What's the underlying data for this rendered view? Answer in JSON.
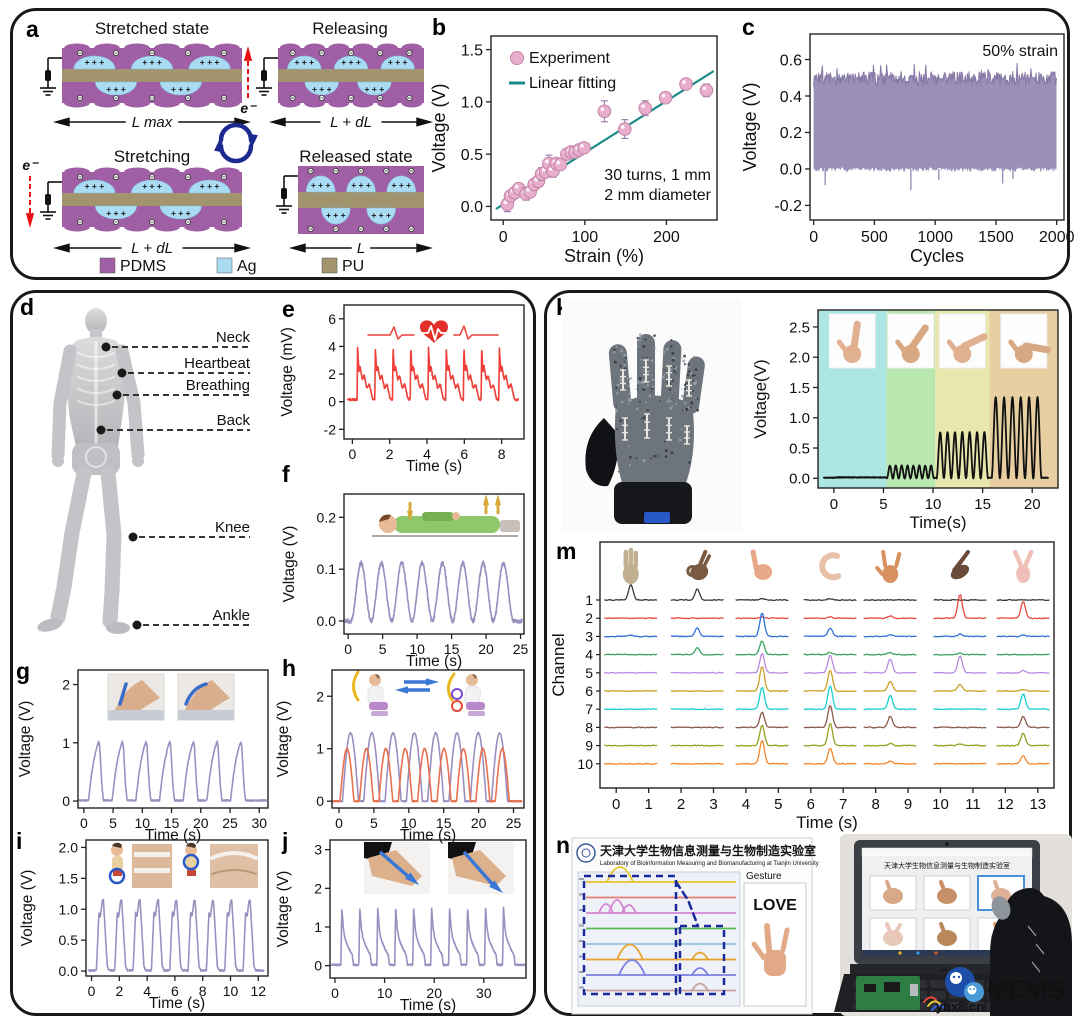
{
  "figure": {
    "type": "scientific-multipanel-figure",
    "background": "#ffffff",
    "border_color": "#1a1a1a"
  },
  "panels": {
    "a": {
      "label": "a",
      "states": [
        "Stretched state",
        "Releasing",
        "Stretching",
        "Released state"
      ],
      "length_labels": [
        "L max",
        "L + dL",
        "L + dL",
        "L"
      ],
      "electron_label": "e⁻",
      "plus_symbol": "+",
      "minus_symbol": "–",
      "legend": [
        {
          "name": "PDMS",
          "color": "#a05fa5"
        },
        {
          "name": "Ag",
          "color": "#a9dcf2"
        },
        {
          "name": "PU",
          "color": "#a2946e"
        }
      ],
      "cycle_arrow_color": "#1a2a8e"
    },
    "b": {
      "label": "b"
    },
    "c": {
      "label": "c"
    },
    "d": {
      "label": "d",
      "annotations": [
        "Neck",
        "Heartbeat",
        "Breathing",
        "Back",
        "Knee",
        "Ankle"
      ]
    },
    "e": {
      "label": "e"
    },
    "f": {
      "label": "f"
    },
    "g": {
      "label": "g"
    },
    "h": {
      "label": "h"
    },
    "i": {
      "label": "i"
    },
    "j": {
      "label": "j"
    },
    "k": {
      "label": "k"
    },
    "l": {
      "label": "l"
    },
    "m": {
      "label": "m"
    },
    "n": {
      "label": "n",
      "software": {
        "header_cn": "天津大学生物信息测量与生物制造实验室",
        "header_en": "Laboratory of Bioinformation Measuring and Biomanufacturing at Tianjin University",
        "gesture_label": "Gesture",
        "result_text": "LOVE",
        "trace_rows": [
          {
            "color": "#e8c428",
            "peak": "big"
          },
          {
            "color": "#e87d72",
            "peak": "none"
          },
          {
            "color": "#d584d5",
            "peak": "multi"
          },
          {
            "color": "#5cb85c",
            "peak": "none"
          },
          {
            "color": "#8fc4dd",
            "peak": "none"
          },
          {
            "color": "#e8a02e",
            "peak": "big",
            "peak2": true
          },
          {
            "color": "#7d7de0",
            "peak": "big",
            "peak2": true
          },
          {
            "color": "#c9a0a0",
            "peak": "none",
            "peak2": true
          }
        ]
      },
      "photo": {
        "brand": "DELL",
        "watermark_site": "ybx8.cn",
        "watermark_mems": "MEMS"
      }
    }
  },
  "chart_data": [
    {
      "id": "b",
      "type": "scatter",
      "xlabel": "Strain (%)",
      "ylabel": "Voltage (V)",
      "xlim": [
        -15,
        262
      ],
      "ylim": [
        -0.13,
        1.63
      ],
      "xticks": [
        0,
        100,
        200
      ],
      "xtick_labels": [
        "0",
        "100",
        "200"
      ],
      "yticks": [
        0,
        0.5,
        1,
        1.5
      ],
      "ytick_labels": [
        "0.0",
        "0.5",
        "1.0",
        "1.5"
      ],
      "legend": [
        {
          "label": "Experiment",
          "marker": "sphere",
          "color": "#e9aecb"
        },
        {
          "label": "Linear fitting",
          "marker": "line",
          "color": "#1f8a8a"
        }
      ],
      "annotation": [
        "30 turns, 1 mm",
        "2 mm diameter"
      ],
      "marker_edge": "#c184aa",
      "error_color": "#9b7fae",
      "points": [
        [
          5,
          0.02,
          0.07
        ],
        [
          9,
          0.1,
          0.05
        ],
        [
          14,
          0.13,
          0.04
        ],
        [
          19,
          0.17,
          0.05
        ],
        [
          28,
          0.12,
          0.06
        ],
        [
          33,
          0.14,
          0.05
        ],
        [
          38,
          0.21,
          0.05
        ],
        [
          43,
          0.24,
          0.05
        ],
        [
          47,
          0.31,
          0.06
        ],
        [
          52,
          0.33,
          0.05
        ],
        [
          56,
          0.41,
          0.08
        ],
        [
          61,
          0.34,
          0.06
        ],
        [
          65,
          0.41,
          0.05
        ],
        [
          70,
          0.4,
          0.04
        ],
        [
          78,
          0.5,
          0.04
        ],
        [
          83,
          0.52,
          0.04
        ],
        [
          88,
          0.52,
          0.04
        ],
        [
          93,
          0.54,
          0.04
        ],
        [
          99,
          0.56,
          0.04
        ],
        [
          124,
          0.91,
          0.1
        ],
        [
          149,
          0.74,
          0.09
        ],
        [
          174,
          0.94,
          0.07
        ],
        [
          199,
          1.04,
          0.05
        ],
        [
          224,
          1.17,
          0.05
        ],
        [
          249,
          1.11,
          0.06
        ]
      ],
      "fit_line": [
        [
          -8,
          -0.02
        ],
        [
          257,
          1.29
        ]
      ]
    },
    {
      "id": "c",
      "type": "noise-band",
      "xlabel": "Cycles",
      "ylabel": "Voltage (V)",
      "xlim": [
        -30,
        2060
      ],
      "ylim": [
        -0.28,
        0.74
      ],
      "xticks": [
        0,
        500,
        1000,
        1500,
        2000
      ],
      "xtick_labels": [
        "0",
        "500",
        "1000",
        "1500",
        "2000"
      ],
      "yticks": [
        -0.2,
        0,
        0.2,
        0.4,
        0.6
      ],
      "ytick_labels": [
        "-0.2",
        "0.0",
        "0.2",
        "0.4",
        "0.6"
      ],
      "annotation": "50% strain",
      "annotation_color": "#fe0000",
      "color": "#9b8fb9",
      "band": {
        "top": 0.495,
        "top_jitter": 0.04,
        "bottom": -0.004,
        "bottom_jitter": 0.013,
        "neg_spikes": [
          [
            95,
            -0.09
          ],
          [
            800,
            -0.115
          ],
          [
            1030,
            -0.06
          ],
          [
            1555,
            -0.08
          ],
          [
            1640,
            -0.055
          ]
        ]
      }
    },
    {
      "id": "e",
      "type": "line",
      "xlabel": "Time (s)",
      "ylabel": "Voltage (mV)",
      "xlim": [
        -0.45,
        9.2
      ],
      "ylim": [
        -2.7,
        7
      ],
      "xticks": [
        0,
        2,
        4,
        6,
        8
      ],
      "xtick_labels": [
        "0",
        "2",
        "4",
        "6",
        "8"
      ],
      "yticks": [
        -2,
        0,
        2,
        4,
        6
      ],
      "ytick_labels": [
        "-2",
        "0",
        "2",
        "4",
        "6"
      ],
      "color": "#ef3f38",
      "icon": "heartbeat-icon",
      "signal": {
        "kind": "pulses",
        "n": 9,
        "start": 0.25,
        "period": 0.95,
        "base": 0.15,
        "noise": 0.07,
        "shape": [
          [
            0,
            0.2
          ],
          [
            0.03,
            3.9
          ],
          [
            0.1,
            2.2
          ],
          [
            0.16,
            2.6
          ],
          [
            0.28,
            1.6
          ],
          [
            0.38,
            1.9
          ],
          [
            0.52,
            1.0
          ],
          [
            0.66,
            1.25
          ],
          [
            0.82,
            0.25
          ],
          [
            0.9,
            0.15
          ]
        ]
      }
    },
    {
      "id": "f",
      "type": "line",
      "xlabel": "Time (s)",
      "ylabel": "Voltage (V)",
      "xlim": [
        -0.6,
        25.5
      ],
      "ylim": [
        -0.025,
        0.245
      ],
      "xticks": [
        0,
        5,
        10,
        15,
        20,
        25
      ],
      "xtick_labels": [
        "0",
        "5",
        "10",
        "15",
        "20",
        "25"
      ],
      "yticks": [
        0,
        0.1,
        0.2
      ],
      "ytick_labels": [
        "0.0",
        "0.1",
        "0.2"
      ],
      "color": "#9b8fc0",
      "icon": "lying-person-illustration",
      "signal": {
        "kind": "sine",
        "start": 0.4,
        "period": 2.95,
        "n": 8,
        "base": 0,
        "amp": 0.112,
        "noise": 0.004
      }
    },
    {
      "id": "g",
      "type": "line",
      "xlabel": "Time (s)",
      "ylabel": "Voltage (V)",
      "xlim": [
        -1,
        31.5
      ],
      "ylim": [
        -0.12,
        2.25
      ],
      "xticks": [
        0,
        5,
        10,
        15,
        20,
        25,
        30
      ],
      "xtick_labels": [
        "0",
        "5",
        "10",
        "15",
        "20",
        "25",
        "30"
      ],
      "yticks": [
        0,
        1,
        2
      ],
      "ytick_labels": [
        "0",
        "1",
        "2"
      ],
      "color": "#9b8fc0",
      "icon": "neck-bending-photos",
      "signal": {
        "kind": "pulses",
        "n": 7,
        "start": 0.8,
        "period": 4.05,
        "base": 0.01,
        "noise": 0.012,
        "shape": [
          [
            0,
            0.02
          ],
          [
            0.5,
            0.45
          ],
          [
            0.9,
            0.7
          ],
          [
            1.4,
            0.92
          ],
          [
            1.75,
            1.02
          ],
          [
            1.9,
            0.95
          ],
          [
            2.3,
            0.25
          ],
          [
            2.55,
            0.02
          ]
        ]
      }
    },
    {
      "id": "h",
      "type": "line",
      "xlabel": "Time (s)",
      "ylabel": "Voltage (V)",
      "xlim": [
        -1,
        26.5
      ],
      "ylim": [
        -0.13,
        2.5
      ],
      "xticks": [
        0,
        5,
        10,
        15,
        20,
        25
      ],
      "xtick_labels": [
        "0",
        "5",
        "10",
        "15",
        "20",
        "25"
      ],
      "yticks": [
        0,
        1,
        2
      ],
      "ytick_labels": [
        "0",
        "1",
        "2"
      ],
      "icon": "sitting-posture-illustration",
      "series": [
        {
          "name": "upright-posture",
          "color": "#9b8fc0",
          "kind": "half_sine",
          "start": 0.5,
          "period": 3.05,
          "width": 2.3,
          "n": 8,
          "amp": 1.3,
          "noise": 0.01
        },
        {
          "name": "hunched-posture",
          "color": "#e8714f",
          "kind": "half_sine",
          "start": 0.15,
          "period": 2.78,
          "width": 2.0,
          "n": 9,
          "amp": 1.0,
          "noise": 0.01
        }
      ]
    },
    {
      "id": "i",
      "type": "line",
      "xlabel": "Time (s)",
      "ylabel": "Voltage (V)",
      "xlim": [
        -0.4,
        12.7
      ],
      "ylim": [
        -0.08,
        2.12
      ],
      "xticks": [
        0,
        2,
        4,
        6,
        8,
        10,
        12
      ],
      "xtick_labels": [
        "0",
        "2",
        "4",
        "6",
        "8",
        "10",
        "12"
      ],
      "yticks": [
        0,
        0.5,
        1,
        1.5,
        2
      ],
      "ytick_labels": [
        "0.0",
        "0.5",
        "1.0",
        "1.5",
        "2.0"
      ],
      "color": "#9b8fc0",
      "icon": "knee-elbow-photos",
      "signal": {
        "kind": "pulses",
        "n": 9,
        "start": 0.35,
        "period": 1.32,
        "base": 0.01,
        "noise": 0.012,
        "shape": [
          [
            0,
            0.02
          ],
          [
            0.18,
            0.95
          ],
          [
            0.28,
            0.88
          ],
          [
            0.42,
            1.13
          ],
          [
            0.5,
            1.15
          ],
          [
            0.62,
            0.7
          ],
          [
            0.78,
            0.08
          ],
          [
            0.9,
            0.02
          ]
        ]
      }
    },
    {
      "id": "j",
      "type": "line",
      "xlabel": "Time (s)",
      "ylabel": "Voltage (V)",
      "xlim": [
        -1,
        38.5
      ],
      "ylim": [
        -0.32,
        3.25
      ],
      "xticks": [
        0,
        10,
        20,
        30
      ],
      "xtick_labels": [
        "0",
        "10",
        "20",
        "30"
      ],
      "yticks": [
        0,
        1,
        2,
        3
      ],
      "ytick_labels": [
        "0",
        "1",
        "2",
        "3"
      ],
      "color": "#9b8fc0",
      "icon": "ankle-flexion-photos",
      "signal": {
        "kind": "pulses",
        "n": 10,
        "start": 1.2,
        "period": 3.62,
        "base": 0.02,
        "noise": 0.02,
        "shape": [
          [
            0,
            0.05
          ],
          [
            0.18,
            1.5
          ],
          [
            0.5,
            0.95
          ],
          [
            0.8,
            0.72
          ],
          [
            1.1,
            0.6
          ],
          [
            1.7,
            0.42
          ],
          [
            2.3,
            0.28
          ],
          [
            2.5,
            0.05
          ]
        ]
      }
    },
    {
      "id": "l",
      "type": "line",
      "xlabel": "Time(s)",
      "ylabel": "Voltage(V)",
      "xlim": [
        -1.6,
        22.6
      ],
      "ylim": [
        -0.16,
        2.78
      ],
      "xticks": [
        0,
        5,
        10,
        15,
        20
      ],
      "xtick_labels": [
        "0",
        "5",
        "10",
        "15",
        "20"
      ],
      "yticks": [
        0,
        0.5,
        1,
        1.5,
        2,
        2.5
      ],
      "ytick_labels": [
        "0.0",
        "0.5",
        "1.0",
        "1.5",
        "2.0",
        "2.5"
      ],
      "color": "#111111",
      "bands": [
        {
          "range": [
            -1.6,
            5.3
          ],
          "color": "#abe6e2"
        },
        {
          "range": [
            5.3,
            10.2
          ],
          "color": "#b9e7b0"
        },
        {
          "range": [
            10.2,
            15.7
          ],
          "color": "#e7e7ae"
        },
        {
          "range": [
            15.7,
            22.6
          ],
          "color": "#e7cfa2"
        }
      ],
      "segments": [
        {
          "t0": 0.2,
          "t1": 5.25,
          "amp": 0.015,
          "cycles": 0
        },
        {
          "t0": 5.35,
          "t1": 10.1,
          "amp": 0.21,
          "cycles": 8
        },
        {
          "t0": 10.35,
          "t1": 15.55,
          "amp": 0.76,
          "cycles": 7
        },
        {
          "t0": 15.9,
          "t1": 20.95,
          "amp": 1.34,
          "cycles": 6
        }
      ],
      "insets": {
        "hand_angles_deg": [
          8,
          35,
          65,
          100
        ],
        "skin_colors": [
          "#e0b090",
          "#d8a882",
          "#e0b090",
          "#d8a882"
        ]
      }
    },
    {
      "id": "m",
      "type": "multichannel",
      "xlabel": "Time (s)",
      "ylabel": "Channel",
      "xlim": [
        -0.5,
        13.5
      ],
      "xticks": [
        0,
        1,
        2,
        3,
        4,
        5,
        6,
        7,
        8,
        9,
        10,
        11,
        12,
        13
      ],
      "channels": [
        {
          "num": "1",
          "color": "#3a3a3a"
        },
        {
          "num": "2",
          "color": "#e8483f"
        },
        {
          "num": "3",
          "color": "#2f6fd6"
        },
        {
          "num": "4",
          "color": "#3aa45f"
        },
        {
          "num": "5",
          "color": "#bb8ae0"
        },
        {
          "num": "6",
          "color": "#c9a227"
        },
        {
          "num": "7",
          "color": "#17cfcf"
        },
        {
          "num": "8",
          "color": "#8a5a4a"
        },
        {
          "num": "9",
          "color": "#9aa021"
        },
        {
          "num": "10",
          "color": "#f5862a"
        }
      ],
      "gestures": [
        "three-finger",
        "ok-sign",
        "thumb-up",
        "c-shape",
        "love-sign",
        "pinch",
        "victory"
      ],
      "gesture_skin_colors": [
        "#c0b090",
        "#7a5a40",
        "#e8a888",
        "#e8c0a8",
        "#d89060",
        "#6a4a38",
        "#f0c0b8"
      ],
      "spike_times": [
        0.45,
        2.5,
        4.5,
        6.6,
        8.45,
        10.6,
        12.55
      ],
      "spike_matrix": [
        [
          0.55,
          0.4,
          0.06,
          0.05,
          0.04,
          0.04,
          0.04
        ],
        [
          0.04,
          0.04,
          0.05,
          0.06,
          0.08,
          0.85,
          0.6
        ],
        [
          0.05,
          0.3,
          0.85,
          0.3,
          0.06,
          0.08,
          0.06
        ],
        [
          0.04,
          0.25,
          0.5,
          0.08,
          0.08,
          0.05,
          0.04
        ],
        [
          0.04,
          0.04,
          0.7,
          0.65,
          0.5,
          0.6,
          0.08
        ],
        [
          0.04,
          0.04,
          0.9,
          0.75,
          0.35,
          0.25,
          0.05
        ],
        [
          0.04,
          0.04,
          0.8,
          0.85,
          0.5,
          0.04,
          0.55
        ],
        [
          0.04,
          0.04,
          0.55,
          0.8,
          0.4,
          0.04,
          0.4
        ],
        [
          0.04,
          0.04,
          0.75,
          0.8,
          0.08,
          0.06,
          0.45
        ],
        [
          0.04,
          0.04,
          0.85,
          0.55,
          0.1,
          0.04,
          0.3
        ]
      ]
    }
  ]
}
